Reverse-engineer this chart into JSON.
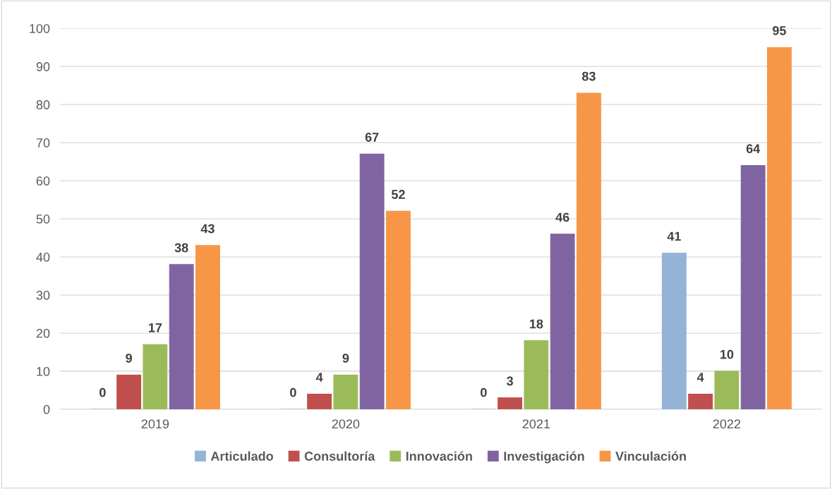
{
  "chart_data": {
    "type": "bar",
    "categories": [
      "2019",
      "2020",
      "2021",
      "2022"
    ],
    "series": [
      {
        "name": "Articulado",
        "color": "#95b3d7",
        "values": [
          0,
          0,
          0,
          41
        ]
      },
      {
        "name": "Consultoría",
        "color": "#c0504d",
        "values": [
          9,
          4,
          3,
          4
        ]
      },
      {
        "name": "Innovación",
        "color": "#9bbb59",
        "values": [
          17,
          9,
          18,
          10
        ]
      },
      {
        "name": "Investigación",
        "color": "#8064a2",
        "values": [
          38,
          67,
          46,
          64
        ]
      },
      {
        "name": "Vinculación",
        "color": "#f79646",
        "values": [
          43,
          52,
          83,
          95
        ]
      }
    ],
    "ylim": [
      0,
      100
    ],
    "yticks": [
      0,
      10,
      20,
      30,
      40,
      50,
      60,
      70,
      80,
      90,
      100
    ],
    "grid": "y",
    "legend": "bottom",
    "data_labels": true
  }
}
